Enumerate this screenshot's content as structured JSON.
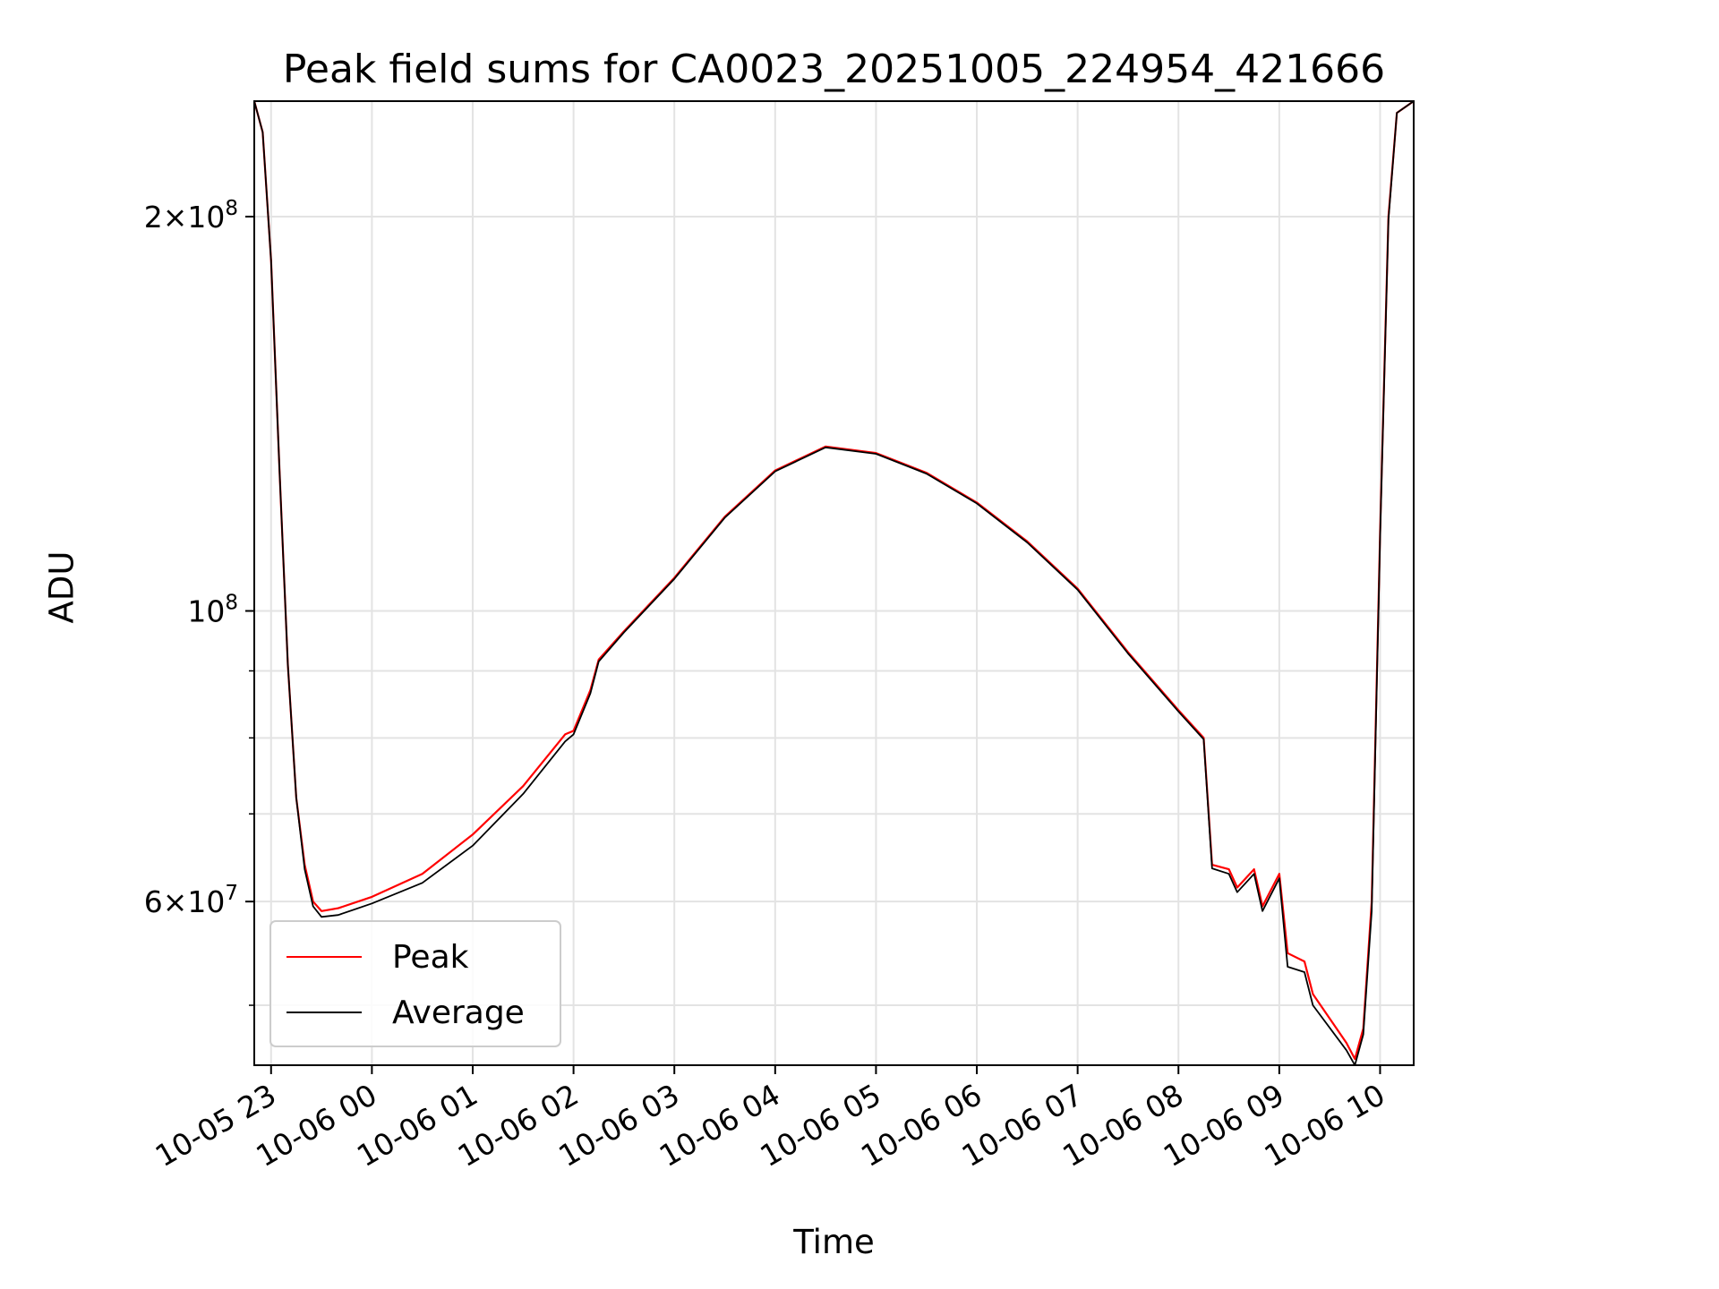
{
  "chart_data": {
    "type": "line",
    "title": "Peak field sums for CA0023_20251005_224954_421666",
    "xlabel": "Time",
    "ylabel": "ADU",
    "y_scale": "log",
    "x_range": [
      "2025-10-05 22:50",
      "2025-10-06 10:20"
    ],
    "ylim": [
      45000000,
      245000000
    ],
    "grid": true,
    "legend_position": "lower-left",
    "x_ticks": [
      "10-05 23",
      "10-06 00",
      "10-06 01",
      "10-06 02",
      "10-06 03",
      "10-06 04",
      "10-06 05",
      "10-06 06",
      "10-06 07",
      "10-06 08",
      "10-06 09",
      "10-06 10"
    ],
    "y_ticks": [
      {
        "mantissa": "2",
        "exponent": "8",
        "value": 200000000
      },
      {
        "mantissa": "",
        "exponent": "8",
        "value": 100000000
      },
      {
        "mantissa": "6",
        "exponent": "7",
        "value": 60000000
      }
    ],
    "series": [
      {
        "name": "Peak",
        "color": "#ff0000",
        "points": [
          [
            "2025-10-05 22:50",
            245000000
          ],
          [
            "2025-10-05 22:55",
            232000000
          ],
          [
            "2025-10-05 23:00",
            185000000
          ],
          [
            "2025-10-05 23:05",
            128000000
          ],
          [
            "2025-10-05 23:10",
            91000000
          ],
          [
            "2025-10-05 23:15",
            72000000
          ],
          [
            "2025-10-05 23:20",
            64000000
          ],
          [
            "2025-10-05 23:25",
            60000000
          ],
          [
            "2025-10-05 23:30",
            59000000
          ],
          [
            "2025-10-05 23:40",
            59300000
          ],
          [
            "2025-10-06 00:00",
            60500000
          ],
          [
            "2025-10-06 00:30",
            63000000
          ],
          [
            "2025-10-06 01:00",
            67500000
          ],
          [
            "2025-10-06 01:30",
            73500000
          ],
          [
            "2025-10-06 01:55",
            80500000
          ],
          [
            "2025-10-06 02:00",
            81000000
          ],
          [
            "2025-10-06 02:10",
            87000000
          ],
          [
            "2025-10-06 02:15",
            91800000
          ],
          [
            "2025-10-06 02:30",
            96500000
          ],
          [
            "2025-10-06 03:00",
            106000000
          ],
          [
            "2025-10-06 03:30",
            118000000
          ],
          [
            "2025-10-06 04:00",
            128000000
          ],
          [
            "2025-10-06 04:30",
            133500000
          ],
          [
            "2025-10-06 05:00",
            132000000
          ],
          [
            "2025-10-06 05:30",
            127500000
          ],
          [
            "2025-10-06 06:00",
            121000000
          ],
          [
            "2025-10-06 06:30",
            113000000
          ],
          [
            "2025-10-06 07:00",
            104000000
          ],
          [
            "2025-10-06 07:30",
            93000000
          ],
          [
            "2025-10-06 08:00",
            84000000
          ],
          [
            "2025-10-06 08:15",
            80000000
          ],
          [
            "2025-10-06 08:20",
            64000000
          ],
          [
            "2025-10-06 08:30",
            63500000
          ],
          [
            "2025-10-06 08:35",
            61500000
          ],
          [
            "2025-10-06 08:45",
            63500000
          ],
          [
            "2025-10-06 08:50",
            59500000
          ],
          [
            "2025-10-06 09:00",
            63000000
          ],
          [
            "2025-10-06 09:05",
            54800000
          ],
          [
            "2025-10-06 09:15",
            54000000
          ],
          [
            "2025-10-06 09:20",
            51000000
          ],
          [
            "2025-10-06 09:40",
            46800000
          ],
          [
            "2025-10-06 09:45",
            45500000
          ],
          [
            "2025-10-06 09:50",
            48000000
          ],
          [
            "2025-10-06 09:55",
            60000000
          ],
          [
            "2025-10-06 10:00",
            115000000
          ],
          [
            "2025-10-06 10:05",
            200000000
          ],
          [
            "2025-10-06 10:10",
            240000000
          ],
          [
            "2025-10-06 10:20",
            245000000
          ]
        ]
      },
      {
        "name": "Average",
        "color": "#000000",
        "points": [
          [
            "2025-10-05 22:50",
            245000000
          ],
          [
            "2025-10-05 22:55",
            232000000
          ],
          [
            "2025-10-05 23:00",
            185000000
          ],
          [
            "2025-10-05 23:05",
            128000000
          ],
          [
            "2025-10-05 23:10",
            91000000
          ],
          [
            "2025-10-05 23:15",
            72000000
          ],
          [
            "2025-10-05 23:20",
            63500000
          ],
          [
            "2025-10-05 23:25",
            59500000
          ],
          [
            "2025-10-05 23:30",
            58400000
          ],
          [
            "2025-10-05 23:40",
            58600000
          ],
          [
            "2025-10-06 00:00",
            59800000
          ],
          [
            "2025-10-06 00:30",
            62000000
          ],
          [
            "2025-10-06 01:00",
            66200000
          ],
          [
            "2025-10-06 01:30",
            72500000
          ],
          [
            "2025-10-06 01:55",
            79500000
          ],
          [
            "2025-10-06 02:00",
            80500000
          ],
          [
            "2025-10-06 02:10",
            86500000
          ],
          [
            "2025-10-06 02:15",
            91500000
          ],
          [
            "2025-10-06 02:30",
            96300000
          ],
          [
            "2025-10-06 03:00",
            105800000
          ],
          [
            "2025-10-06 03:30",
            117800000
          ],
          [
            "2025-10-06 04:00",
            127800000
          ],
          [
            "2025-10-06 04:30",
            133300000
          ],
          [
            "2025-10-06 05:00",
            131800000
          ],
          [
            "2025-10-06 05:30",
            127300000
          ],
          [
            "2025-10-06 06:00",
            120800000
          ],
          [
            "2025-10-06 06:30",
            112800000
          ],
          [
            "2025-10-06 07:00",
            103800000
          ],
          [
            "2025-10-06 07:30",
            92800000
          ],
          [
            "2025-10-06 08:00",
            83800000
          ],
          [
            "2025-10-06 08:15",
            79800000
          ],
          [
            "2025-10-06 08:20",
            63600000
          ],
          [
            "2025-10-06 08:30",
            63000000
          ],
          [
            "2025-10-06 08:35",
            61000000
          ],
          [
            "2025-10-06 08:45",
            63000000
          ],
          [
            "2025-10-06 08:50",
            59000000
          ],
          [
            "2025-10-06 09:00",
            62500000
          ],
          [
            "2025-10-06 09:05",
            53500000
          ],
          [
            "2025-10-06 09:15",
            53000000
          ],
          [
            "2025-10-06 09:20",
            50000000
          ],
          [
            "2025-10-06 09:40",
            46200000
          ],
          [
            "2025-10-06 09:45",
            45000000
          ],
          [
            "2025-10-06 09:50",
            47500000
          ],
          [
            "2025-10-06 09:55",
            59000000
          ],
          [
            "2025-10-06 10:00",
            114000000
          ],
          [
            "2025-10-06 10:05",
            199000000
          ],
          [
            "2025-10-06 10:10",
            240000000
          ],
          [
            "2025-10-06 10:20",
            245000000
          ]
        ]
      }
    ]
  }
}
